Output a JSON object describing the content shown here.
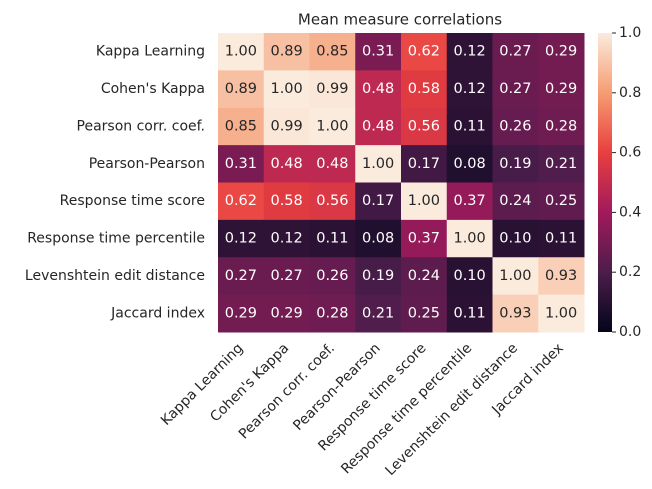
{
  "chart_data": {
    "type": "heatmap",
    "title": "Mean measure correlations",
    "x_categories": [
      "Kappa Learning",
      "Cohen's Kappa",
      "Pearson corr. coef.",
      "Pearson-Pearson",
      "Response time score",
      "Response time percentile",
      "Levenshtein edit distance",
      "Jaccard index"
    ],
    "y_categories": [
      "Kappa Learning",
      "Cohen's Kappa",
      "Pearson corr. coef.",
      "Pearson-Pearson",
      "Response time score",
      "Response time percentile",
      "Levenshtein edit distance",
      "Jaccard index"
    ],
    "values": [
      [
        1.0,
        0.89,
        0.85,
        0.31,
        0.62,
        0.12,
        0.27,
        0.29
      ],
      [
        0.89,
        1.0,
        0.99,
        0.48,
        0.58,
        0.12,
        0.27,
        0.29
      ],
      [
        0.85,
        0.99,
        1.0,
        0.48,
        0.56,
        0.11,
        0.26,
        0.28
      ],
      [
        0.31,
        0.48,
        0.48,
        1.0,
        0.17,
        0.08,
        0.19,
        0.21
      ],
      [
        0.62,
        0.58,
        0.56,
        0.17,
        1.0,
        0.37,
        0.24,
        0.25
      ],
      [
        0.12,
        0.12,
        0.11,
        0.08,
        0.37,
        1.0,
        0.1,
        0.11
      ],
      [
        0.27,
        0.27,
        0.26,
        0.19,
        0.24,
        0.1,
        1.0,
        0.93
      ],
      [
        0.29,
        0.29,
        0.28,
        0.21,
        0.25,
        0.11,
        0.93,
        1.0
      ]
    ],
    "value_labels": [
      [
        "1.00",
        "0.89",
        "0.85",
        "0.31",
        "0.62",
        "0.12",
        "0.27",
        "0.29"
      ],
      [
        "0.89",
        "1.00",
        "0.99",
        "0.48",
        "0.58",
        "0.12",
        "0.27",
        "0.29"
      ],
      [
        "0.85",
        "0.99",
        "1.00",
        "0.48",
        "0.56",
        "0.11",
        "0.26",
        "0.28"
      ],
      [
        "0.31",
        "0.48",
        "0.48",
        "1.00",
        "0.17",
        "0.08",
        "0.19",
        "0.21"
      ],
      [
        "0.62",
        "0.58",
        "0.56",
        "0.17",
        "1.00",
        "0.37",
        "0.24",
        "0.25"
      ],
      [
        "0.12",
        "0.12",
        "0.11",
        "0.08",
        "0.37",
        "1.00",
        "0.10",
        "0.11"
      ],
      [
        "0.27",
        "0.27",
        "0.26",
        "0.19",
        "0.24",
        "0.10",
        "1.00",
        "0.93"
      ],
      [
        "0.29",
        "0.29",
        "0.28",
        "0.21",
        "0.25",
        "0.11",
        "0.93",
        "1.00"
      ]
    ],
    "colormap": [
      "#03051a",
      "#4c1d4b",
      "#a11a5b",
      "#e83f3f",
      "#f69c73",
      "#faebdd"
    ],
    "clim": [
      0,
      1
    ],
    "cticks": [
      {
        "value": 0,
        "label": "0.0"
      },
      0.2,
      0.4,
      0.6,
      0.8,
      {
        "value": 1,
        "label": "1.0"
      }
    ]
  }
}
